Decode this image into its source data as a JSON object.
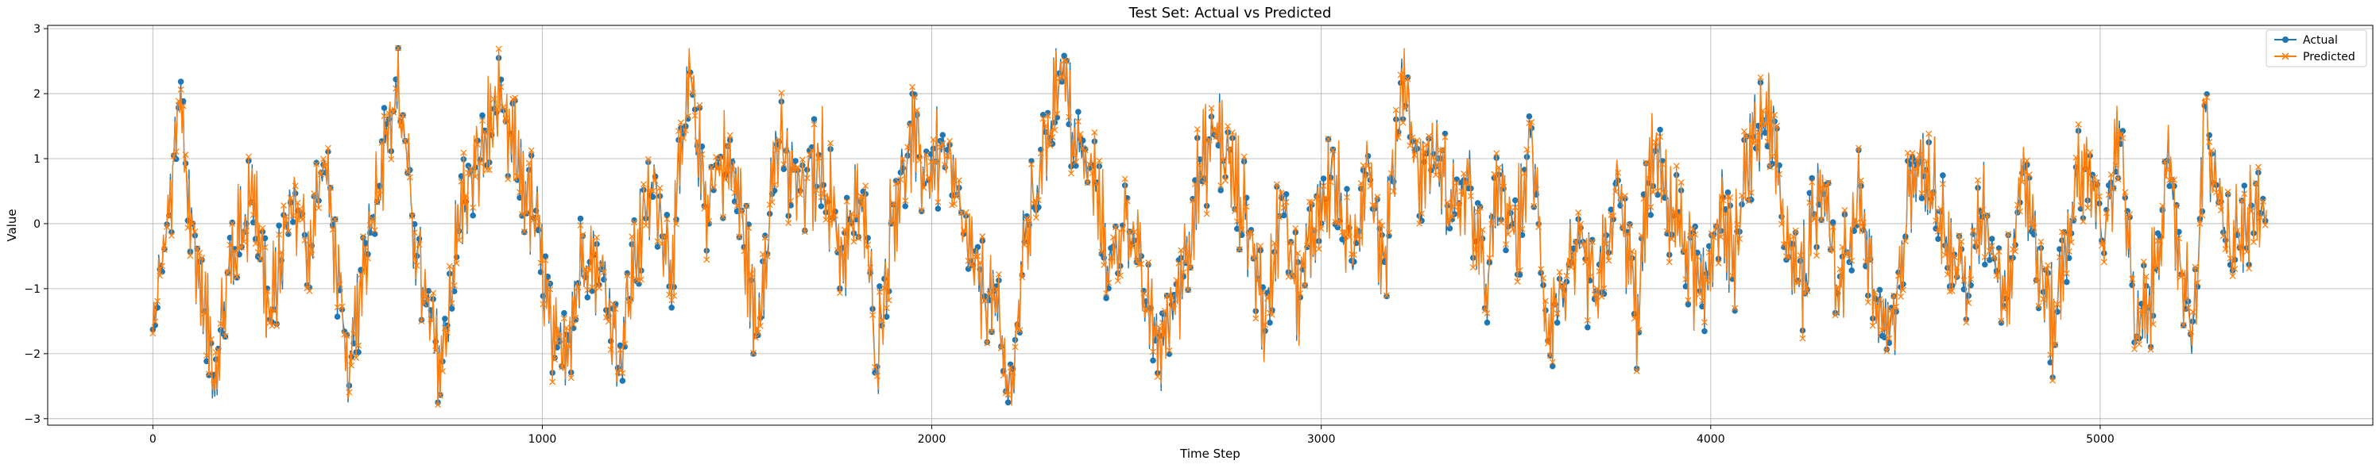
{
  "chart_data": {
    "type": "line",
    "title": "Test Set: Actual vs Predicted",
    "xlabel": "Time Step",
    "ylabel": "Value",
    "xlim": [
      -270,
      5700
    ],
    "ylim": [
      -3.1,
      3.05
    ],
    "xticks": [
      0,
      1000,
      2000,
      3000,
      4000,
      5000
    ],
    "yticks": [
      -3,
      -2,
      -1,
      0,
      1,
      2,
      3
    ],
    "grid": true,
    "legend_position": "top-right",
    "n_points": 5430,
    "series": [
      {
        "name": "Actual",
        "color": "#1f77b4",
        "marker": "circle"
      },
      {
        "name": "Predicted",
        "color": "#ff7f0e",
        "marker": "x"
      }
    ],
    "anchors": [
      [
        0,
        -1.8
      ],
      [
        25,
        -0.5
      ],
      [
        45,
        0.3
      ],
      [
        70,
        1.9
      ],
      [
        95,
        0.2
      ],
      [
        120,
        -0.9
      ],
      [
        160,
        -2.3
      ],
      [
        200,
        -0.6
      ],
      [
        260,
        0.6
      ],
      [
        300,
        -1.5
      ],
      [
        360,
        0.4
      ],
      [
        400,
        -0.4
      ],
      [
        440,
        1.0
      ],
      [
        470,
        -0.5
      ],
      [
        500,
        -2.6
      ],
      [
        540,
        -0.6
      ],
      [
        580,
        0.8
      ],
      [
        630,
        2.1
      ],
      [
        660,
        0.4
      ],
      [
        700,
        -1.3
      ],
      [
        740,
        -2.2
      ],
      [
        790,
        0.2
      ],
      [
        840,
        1.0
      ],
      [
        880,
        1.8
      ],
      [
        920,
        1.2
      ],
      [
        960,
        0.5
      ],
      [
        990,
        -0.2
      ],
      [
        1030,
        -2.1
      ],
      [
        1070,
        -1.6
      ],
      [
        1110,
        -0.3
      ],
      [
        1160,
        -0.9
      ],
      [
        1200,
        -2.1
      ],
      [
        1240,
        -0.4
      ],
      [
        1290,
        0.6
      ],
      [
        1330,
        -0.6
      ],
      [
        1380,
        2.2
      ],
      [
        1420,
        0.3
      ],
      [
        1460,
        1.0
      ],
      [
        1500,
        0.6
      ],
      [
        1550,
        -1.7
      ],
      [
        1600,
        1.2
      ],
      [
        1660,
        0.5
      ],
      [
        1720,
        0.9
      ],
      [
        1770,
        -0.5
      ],
      [
        1820,
        0.4
      ],
      [
        1860,
        -2.0
      ],
      [
        1900,
        0.2
      ],
      [
        1950,
        1.2
      ],
      [
        1990,
        0.8
      ],
      [
        2030,
        1.1
      ],
      [
        2070,
        0.2
      ],
      [
        2110,
        -0.8
      ],
      [
        2160,
        -1.2
      ],
      [
        2200,
        -2.7
      ],
      [
        2240,
        -0.3
      ],
      [
        2280,
        0.9
      ],
      [
        2330,
        2.5
      ],
      [
        2370,
        1.2
      ],
      [
        2420,
        0.6
      ],
      [
        2460,
        -0.8
      ],
      [
        2500,
        0.3
      ],
      [
        2550,
        -1.3
      ],
      [
        2590,
        -1.9
      ],
      [
        2640,
        -0.8
      ],
      [
        2680,
        0.5
      ],
      [
        2730,
        1.5
      ],
      [
        2780,
        0.6
      ],
      [
        2820,
        -0.2
      ],
      [
        2860,
        -1.6
      ],
      [
        2900,
        0.7
      ],
      [
        2940,
        -1.2
      ],
      [
        2980,
        0.0
      ],
      [
        3030,
        0.8
      ],
      [
        3080,
        -0.7
      ],
      [
        3120,
        1.2
      ],
      [
        3160,
        -0.8
      ],
      [
        3210,
        2.4
      ],
      [
        3250,
        0.7
      ],
      [
        3290,
        1.1
      ],
      [
        3330,
        0.3
      ],
      [
        3380,
        0.5
      ],
      [
        3420,
        -1.0
      ],
      [
        3460,
        0.6
      ],
      [
        3500,
        -0.3
      ],
      [
        3540,
        1.3
      ],
      [
        3580,
        -1.6
      ],
      [
        3620,
        -1.0
      ],
      [
        3670,
        -0.5
      ],
      [
        3710,
        -1.2
      ],
      [
        3760,
        0.6
      ],
      [
        3810,
        -1.4
      ],
      [
        3850,
        1.1
      ],
      [
        3890,
        0.4
      ],
      [
        3940,
        -0.4
      ],
      [
        3980,
        -1.3
      ],
      [
        4020,
        0.3
      ],
      [
        4060,
        -0.6
      ],
      [
        4100,
        1.0
      ],
      [
        4150,
        1.8
      ],
      [
        4190,
        -0.3
      ],
      [
        4240,
        -0.8
      ],
      [
        4290,
        0.9
      ],
      [
        4330,
        -1.2
      ],
      [
        4380,
        0.6
      ],
      [
        4420,
        -1.2
      ],
      [
        4470,
        -1.8
      ],
      [
        4510,
        0.6
      ],
      [
        4560,
        1.0
      ],
      [
        4610,
        -0.4
      ],
      [
        4660,
        -0.9
      ],
      [
        4700,
        0.2
      ],
      [
        4760,
        -1.1
      ],
      [
        4800,
        1.0
      ],
      [
        4840,
        -0.6
      ],
      [
        4880,
        -1.6
      ],
      [
        4930,
        0.4
      ],
      [
        4970,
        1.0
      ],
      [
        5010,
        -0.4
      ],
      [
        5050,
        1.7
      ],
      [
        5090,
        -1.8
      ],
      [
        5130,
        -1.2
      ],
      [
        5170,
        0.8
      ],
      [
        5210,
        -0.7
      ],
      [
        5240,
        -1.6
      ],
      [
        5270,
        1.7
      ],
      [
        5300,
        0.3
      ],
      [
        5340,
        -0.4
      ],
      [
        5390,
        0.1
      ],
      [
        5429,
        0.0
      ]
    ]
  },
  "legend": {
    "actual": "Actual",
    "predicted": "Predicted"
  }
}
